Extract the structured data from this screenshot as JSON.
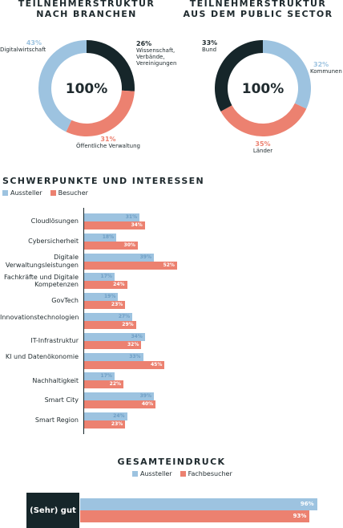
{
  "colors": {
    "blue": "#9dc3e0",
    "salmon": "#ec8170",
    "dark": "#16262a"
  },
  "chart_data": [
    {
      "type": "pie",
      "title": "TEILNEHMERSTRUKTUR NACH BRANCHEN",
      "center_label": "100%",
      "slices": [
        {
          "name": "Wissenschaft, Verbände, Vereinigungen",
          "value": 26,
          "label": "26%",
          "color": "#16262a"
        },
        {
          "name": "Öffentliche Verwaltung",
          "value": 31,
          "label": "31%",
          "color": "#ec8170"
        },
        {
          "name": "Digitalwirtschaft",
          "value": 43,
          "label": "43%",
          "color": "#9dc3e0"
        }
      ]
    },
    {
      "type": "pie",
      "title": "TEILNEHMERSTRUKTUR AUS DEM PUBLIC SECTOR",
      "center_label": "100%",
      "slices": [
        {
          "name": "Kommunen",
          "value": 32,
          "label": "32%",
          "color": "#9dc3e0"
        },
        {
          "name": "Länder",
          "value": 35,
          "label": "35%",
          "color": "#ec8170"
        },
        {
          "name": "Bund",
          "value": 33,
          "label": "33%",
          "color": "#16262a"
        }
      ]
    },
    {
      "type": "bar",
      "orientation": "horizontal",
      "title": "SCHWERPUNKTE UND INTERESSEN",
      "categories": [
        "Cloudlösungen",
        "Cybersicherheit",
        "Digitale Verwaltungsleistungen",
        "Fachkräfte und Digitale Kompetenzen",
        "GovTech",
        "Innovationstechnologien",
        "IT-Infrastruktur",
        "KI und Datenökonomie",
        "Nachhaltigkeit",
        "Smart City",
        "Smart Region"
      ],
      "series": [
        {
          "name": "Aussteller",
          "values": [
            31,
            18,
            39,
            17,
            19,
            27,
            34,
            33,
            17,
            39,
            24
          ]
        },
        {
          "name": "Besucher",
          "values": [
            34,
            30,
            52,
            24,
            23,
            29,
            32,
            45,
            22,
            40,
            23
          ]
        }
      ],
      "xlim": [
        0,
        60
      ]
    },
    {
      "type": "bar",
      "orientation": "horizontal",
      "title": "GESAMTEINDRUCK",
      "categories": [
        "(Sehr) gut"
      ],
      "series": [
        {
          "name": "Aussteller",
          "values": [
            96
          ]
        },
        {
          "name": "Fachbesucher",
          "values": [
            93
          ]
        }
      ],
      "xlim": [
        0,
        100
      ]
    }
  ],
  "labels": {
    "donut1": {
      "title_line1": "TEILNEHMERSTRUKTUR",
      "title_line2": "NACH BRANCHEN",
      "p_dark": "26%",
      "l_dark_1": "Wissenschaft,",
      "l_dark_2": "Verbände,",
      "l_dark_3": "Vereinigungen",
      "p_salmon": "31%",
      "l_salmon": "Öffentliche Verwaltung",
      "p_blue": "43%",
      "l_blue": "Digitalwirtschaft",
      "center": "100%"
    },
    "donut2": {
      "title_line1": "TEILNEHMERSTRUKTUR",
      "title_line2": "AUS DEM PUBLIC SECTOR",
      "p_dark": "33%",
      "l_dark": "Bund",
      "p_blue": "32%",
      "l_blue": "Kommunen",
      "p_salmon": "35%",
      "l_salmon": "Länder",
      "center": "100%"
    },
    "interests": {
      "title": "SCHWERPUNKTE UND INTERESSEN",
      "legend_a": "Aussteller",
      "legend_b": "Besucher"
    },
    "overall": {
      "title": "GESAMTEINDRUCK",
      "legend_a": "Aussteller",
      "legend_b": "Fachbesucher",
      "category": "(Sehr) gut",
      "value_a": "96%",
      "value_b": "93%"
    }
  }
}
